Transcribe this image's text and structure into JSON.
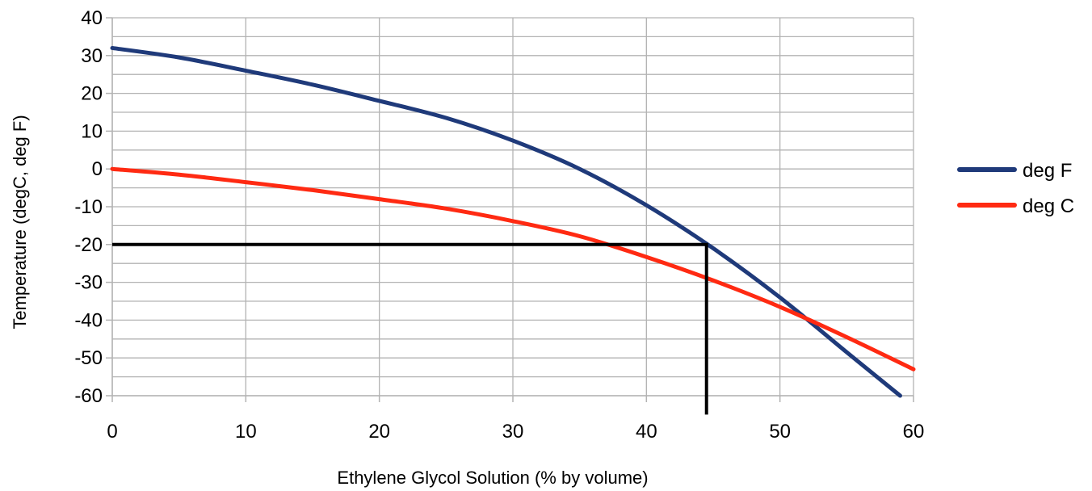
{
  "chart_data": {
    "type": "line",
    "xlabel": "Ethylene Glycol Solution (% by volume)",
    "ylabel": "Temperature (degC,  deg F)",
    "xlim": [
      0,
      60
    ],
    "ylim": [
      -60,
      40
    ],
    "x_ticks": [
      0,
      10,
      20,
      30,
      40,
      50,
      60
    ],
    "y_ticks": [
      40,
      30,
      20,
      10,
      0,
      -10,
      -20,
      -30,
      -40,
      -50,
      -60
    ],
    "x_tick_labels": [
      "0",
      "10",
      "20",
      "30",
      "40",
      "50",
      "60"
    ],
    "y_tick_labels": [
      "40",
      "30",
      "20",
      "10",
      "0",
      "-10",
      "-20",
      "-30",
      "-40",
      "-50",
      "-60"
    ],
    "grid": true,
    "legend_position": "right",
    "series": [
      {
        "name": "deg F",
        "color": "#1f3a7a",
        "x": [
          0,
          5,
          10,
          15,
          20,
          25,
          30,
          35,
          40,
          45,
          50,
          55,
          59
        ],
        "y": [
          32,
          29.5,
          26,
          22.3,
          18,
          13.5,
          7.5,
          0,
          -9.6,
          -21,
          -34,
          -48.5,
          -60
        ]
      },
      {
        "name": "deg C",
        "color": "#ff2a12",
        "x": [
          0,
          5,
          10,
          15,
          20,
          25,
          30,
          35,
          40,
          45,
          50,
          55,
          60
        ],
        "y": [
          0,
          -1.5,
          -3.5,
          -5.6,
          -8,
          -10.5,
          -13.8,
          -17.8,
          -23.3,
          -29.5,
          -36.5,
          -44.5,
          -53
        ]
      }
    ],
    "annotations": [
      {
        "type": "reference-line",
        "color": "#000000",
        "points": [
          [
            0,
            -20
          ],
          [
            44.5,
            -20
          ],
          [
            44.5,
            -65
          ]
        ]
      }
    ]
  }
}
